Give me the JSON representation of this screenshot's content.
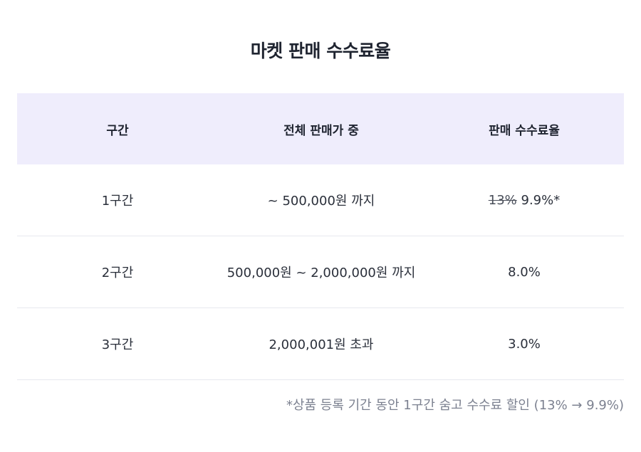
{
  "title": "마켓 판매 수수료율",
  "table": {
    "headers": [
      "구간",
      "전체 판매가 중",
      "판매 수수료율"
    ],
    "rows": [
      {
        "tier": "1구간",
        "range": "~ 500,000원 까지",
        "old_rate": "13%",
        "rate": "9.9%*"
      },
      {
        "tier": "2구간",
        "range": "500,000원 ~ 2,000,000원 까지",
        "rate": "8.0%"
      },
      {
        "tier": "3구간",
        "range": "2,000,001원 초과",
        "rate": "3.0%"
      }
    ]
  },
  "footnote": "*상품 등록 기간 동안 1구간 숨고 수수료 할인 (13% → 9.9%)",
  "colors": {
    "header_bg": "#efedfc",
    "divider": "#e7e8ee",
    "note_text": "#7c8190"
  }
}
